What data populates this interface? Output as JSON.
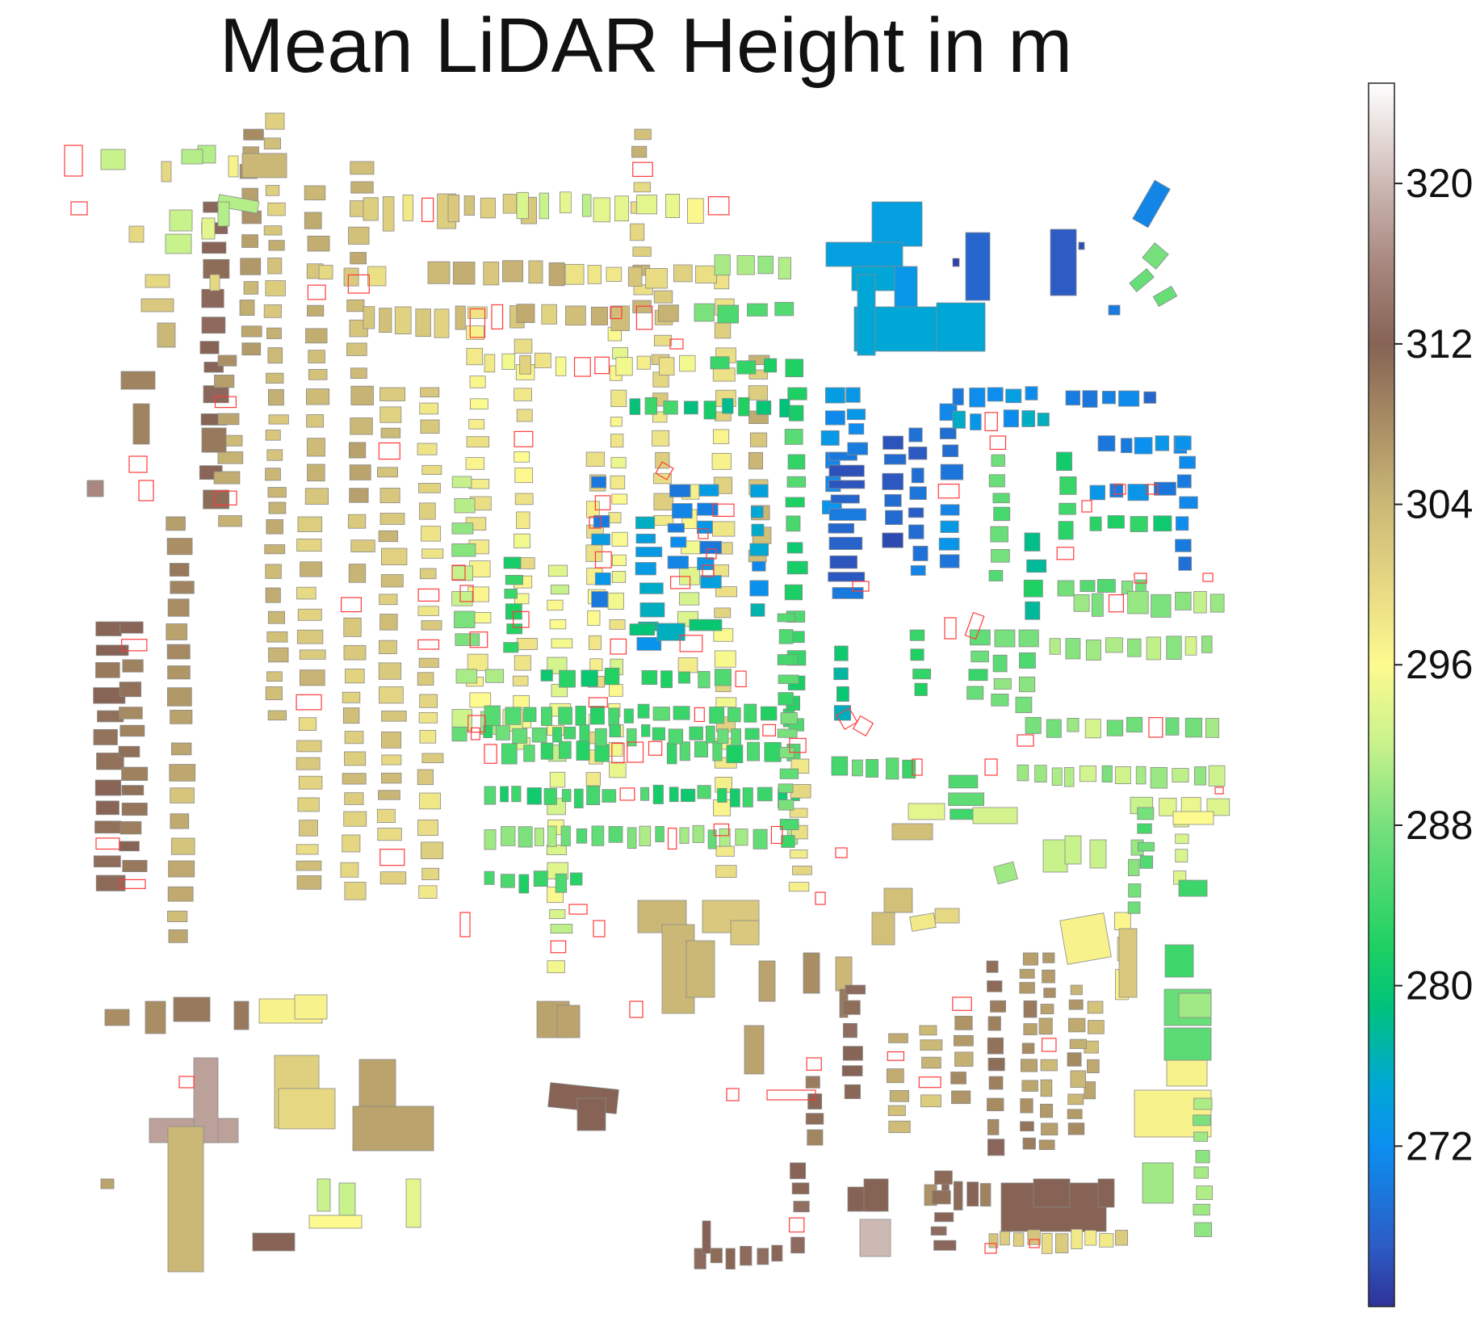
{
  "title": "Mean LiDAR Height in m",
  "colorbar": {
    "ticks": [
      {
        "value": 272,
        "label": "272"
      },
      {
        "value": 280,
        "label": "280"
      },
      {
        "value": 288,
        "label": "288"
      },
      {
        "value": 296,
        "label": "296"
      },
      {
        "value": 304,
        "label": "304"
      },
      {
        "value": 312,
        "label": "312"
      },
      {
        "value": 320,
        "label": "320"
      }
    ],
    "range": [
      264,
      325
    ],
    "colormap": "terrain",
    "stops": [
      {
        "value": 264,
        "color": "#2f3398"
      },
      {
        "value": 267,
        "color": "#2c5cc4"
      },
      {
        "value": 272,
        "color": "#0c8ff0"
      },
      {
        "value": 275,
        "color": "#00a7d6"
      },
      {
        "value": 279,
        "color": "#00c27a"
      },
      {
        "value": 282,
        "color": "#1fd162"
      },
      {
        "value": 288,
        "color": "#77e07c"
      },
      {
        "value": 292,
        "color": "#c8f28c"
      },
      {
        "value": 296,
        "color": "#fdfa8f"
      },
      {
        "value": 300,
        "color": "#e6d883"
      },
      {
        "value": 304,
        "color": "#cbb876"
      },
      {
        "value": 308,
        "color": "#a98e64"
      },
      {
        "value": 312,
        "color": "#866355"
      },
      {
        "value": 316,
        "color": "#a8887f"
      },
      {
        "value": 320,
        "color": "#cdb9b4"
      },
      {
        "value": 325,
        "color": "#ffffff"
      }
    ]
  },
  "no_data_outline_color": "#ff3b3b"
}
